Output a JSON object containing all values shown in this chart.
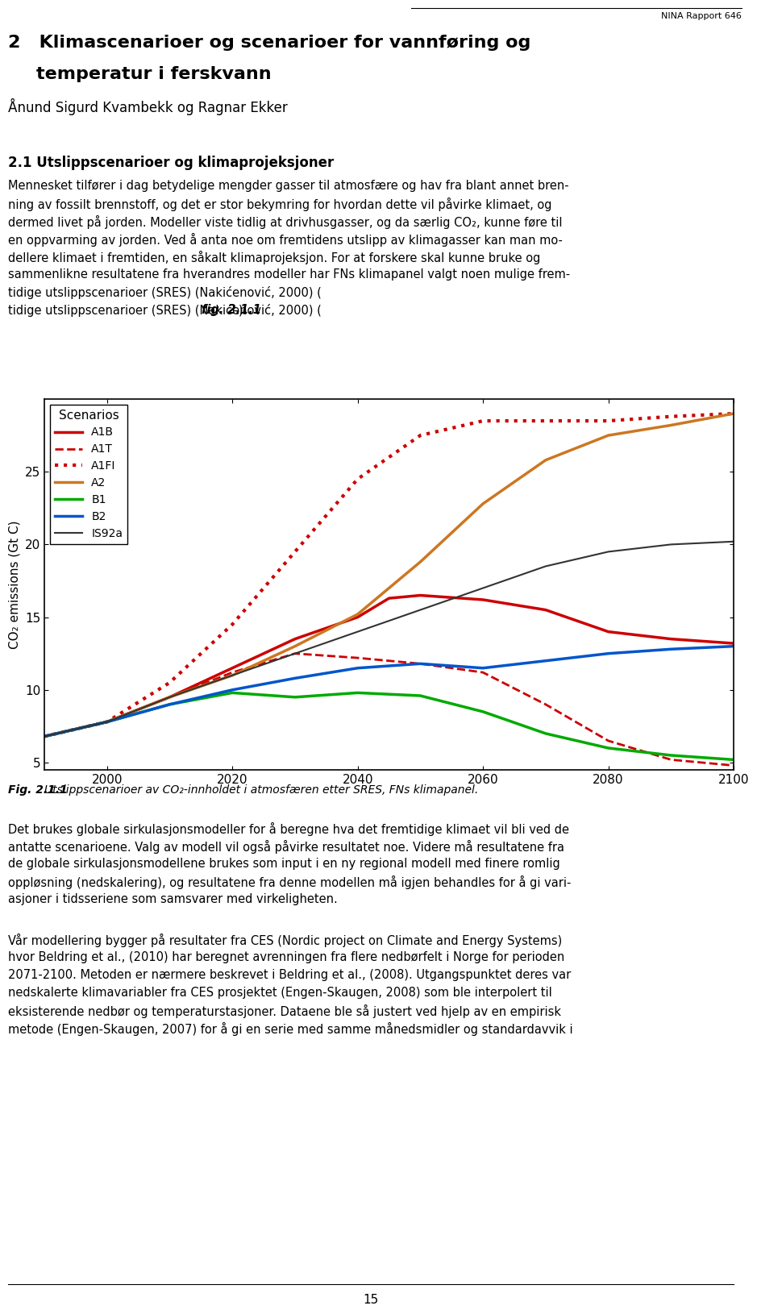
{
  "header_right": "NINA Rapport 646",
  "chapter_title_line1": "2   Klimascenarioer og scenarioer for vannføring og",
  "chapter_title_line2": "    temperatur i ferskvann",
  "authors": "Ånund Sigurd Kvambekk og Ragnar Ekker",
  "section_title": "2.1 Utslippscenarioer og klimaprojeksjoner",
  "body_lines": [
    "Mennesket tilfører i dag betydelige mengder gasser til atmosfære og hav fra blant annet bren-",
    "ning av fossilt brennstoff, og det er stor bekymring for hvordan dette vil påvirke klimaet, og",
    "dermed livet på jorden. Modeller viste tidlig at drivhusgasser, og da særlig CO₂, kunne føre til",
    "en oppvarming av jorden. Ved å anta noe om fremtidens utslipp av klimagasser kan man mo-",
    "dellere klimaet i fremtiden, en såkalt klimaprojeksjon. For at forskere skal kunne bruke og",
    "sammenlikne resultatene fra hverandres modeller har FNs klimapanel valgt noen mulige frem-",
    "tidige utslippscenarioer (SRES) (Nakićenović, 2000) ("
  ],
  "body_line_last_bold": "fig. 2.1.1",
  "body_line_last_end": ").",
  "fig_caption_prefix": "Fig. 2.1.1 ",
  "fig_caption_rest": "Utslippscenarioer av CO₂-innholdet i atmosfæren etter SRES, FNs klimapanel.",
  "body2_lines": [
    "Det brukes globale sirkulasjonsmodeller for å beregne hva det fremtidige klimaet vil bli ved de",
    "antatte scenarioene. Valg av modell vil også påvirke resultatet noe. Videre må resultatene fra",
    "de globale sirkulasjonsmodellene brukes som input i en ny regional modell med finere romlig",
    "oppløsning (nedskalering), og resultatene fra denne modellen må igjen behandles for å gi vari-",
    "asjoner i tidsseriene som samsvarer med virkeligheten."
  ],
  "body3_lines": [
    "Vår modellering bygger på resultater fra CES (Nordic project on Climate and Energy Systems)",
    "hvor Beldring et al., (2010) har beregnet avrenningen fra flere nedbørfelt i Norge for perioden",
    "2071-2100. Metoden er nærmere beskrevet i Beldring et al., (2008). Utgangspunktet deres var",
    "nedskalerte klimavariabler fra CES prosjektet (Engen-Skaugen, 2008) som ble interpolert til",
    "eksisterende nedbør og temperaturstasjoner. Dataene ble så justert ved hjelp av en empirisk",
    "metode (Engen-Skaugen, 2007) for å gi en serie med samme månedsmidler og standardavvik i"
  ],
  "page_number": "15",
  "scenarios": {
    "A1B": {
      "color": "#cc0000",
      "linestyle": "solid",
      "linewidth": 2.5,
      "x": [
        1990,
        2000,
        2010,
        2020,
        2030,
        2040,
        2045,
        2050,
        2060,
        2070,
        2080,
        2090,
        2100
      ],
      "y": [
        6.8,
        7.8,
        9.5,
        11.5,
        13.5,
        15.0,
        16.3,
        16.5,
        16.2,
        15.5,
        14.0,
        13.5,
        13.2
      ]
    },
    "A1T": {
      "color": "#cc0000",
      "linestyle": "dashed",
      "linewidth": 2.0,
      "x": [
        1990,
        2000,
        2010,
        2020,
        2030,
        2040,
        2050,
        2060,
        2070,
        2080,
        2090,
        2100
      ],
      "y": [
        6.8,
        7.8,
        9.5,
        11.2,
        12.5,
        12.2,
        11.8,
        11.2,
        9.0,
        6.5,
        5.2,
        4.8
      ]
    },
    "A1FI": {
      "color": "#cc0000",
      "linestyle": "dotted",
      "linewidth": 3.0,
      "x": [
        1990,
        2000,
        2010,
        2020,
        2030,
        2040,
        2050,
        2060,
        2070,
        2080,
        2090,
        2100
      ],
      "y": [
        6.8,
        7.8,
        10.5,
        14.5,
        19.5,
        24.5,
        27.5,
        28.5,
        28.5,
        28.5,
        28.8,
        29.0
      ]
    },
    "A2": {
      "color": "#cc7722",
      "linestyle": "solid",
      "linewidth": 2.5,
      "x": [
        1990,
        2000,
        2010,
        2020,
        2030,
        2040,
        2050,
        2060,
        2070,
        2080,
        2090,
        2100
      ],
      "y": [
        6.8,
        7.8,
        9.5,
        11.0,
        13.0,
        15.2,
        18.8,
        22.8,
        25.8,
        27.5,
        28.2,
        29.0
      ]
    },
    "B1": {
      "color": "#00aa00",
      "linestyle": "solid",
      "linewidth": 2.5,
      "x": [
        1990,
        2000,
        2010,
        2020,
        2030,
        2040,
        2050,
        2060,
        2070,
        2080,
        2090,
        2100
      ],
      "y": [
        6.8,
        7.8,
        9.0,
        9.8,
        9.5,
        9.8,
        9.6,
        8.5,
        7.0,
        6.0,
        5.5,
        5.2
      ]
    },
    "B2": {
      "color": "#0055cc",
      "linestyle": "solid",
      "linewidth": 2.5,
      "x": [
        1990,
        2000,
        2010,
        2020,
        2030,
        2040,
        2050,
        2060,
        2070,
        2080,
        2090,
        2100
      ],
      "y": [
        6.8,
        7.8,
        9.0,
        10.0,
        10.8,
        11.5,
        11.8,
        11.5,
        12.0,
        12.5,
        12.8,
        13.0
      ]
    },
    "IS92a": {
      "color": "#333333",
      "linestyle": "solid",
      "linewidth": 1.5,
      "x": [
        1990,
        2000,
        2010,
        2020,
        2030,
        2040,
        2050,
        2060,
        2070,
        2080,
        2090,
        2100
      ],
      "y": [
        6.8,
        7.8,
        9.5,
        11.0,
        12.5,
        14.0,
        15.5,
        17.0,
        18.5,
        19.5,
        20.0,
        20.2
      ]
    }
  },
  "xlim": [
    1990,
    2100
  ],
  "ylim": [
    4.5,
    30
  ],
  "yticks": [
    5,
    10,
    15,
    20,
    25
  ],
  "xticks": [
    2000,
    2020,
    2040,
    2060,
    2080,
    2100
  ],
  "ylabel": "CO₂ emissions (Gt C)",
  "background_color": "#ffffff"
}
